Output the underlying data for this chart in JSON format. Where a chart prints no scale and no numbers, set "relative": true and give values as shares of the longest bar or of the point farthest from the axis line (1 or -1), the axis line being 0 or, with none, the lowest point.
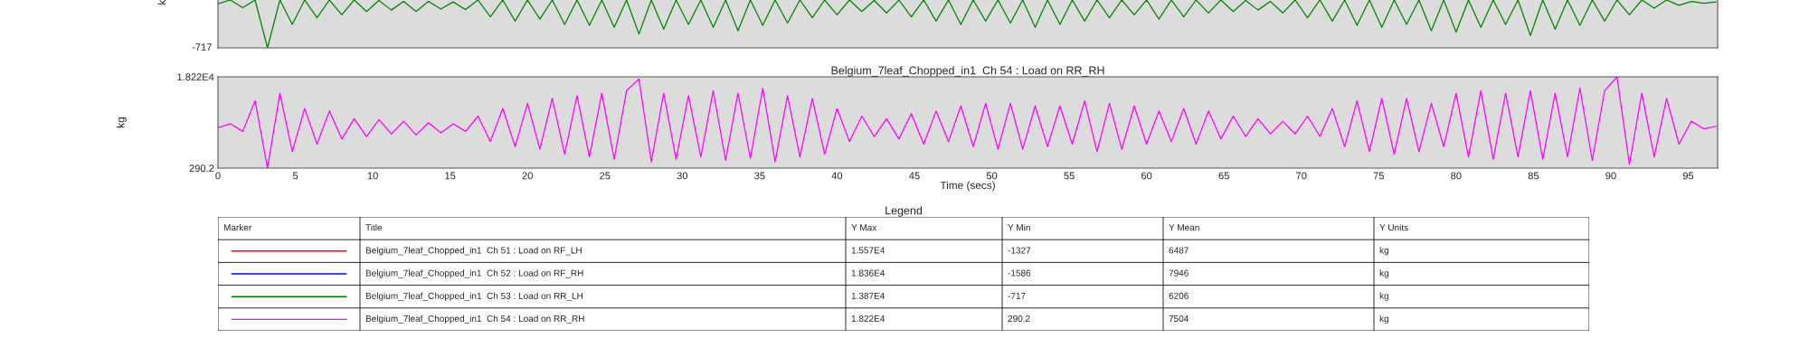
{
  "chart_data": [
    {
      "type": "line",
      "ylabel": "k",
      "relative": true,
      "annotations": [
        "-717"
      ],
      "xlim": [
        0,
        96.9
      ],
      "xticks": [
        0,
        5,
        10,
        15,
        20,
        25,
        30,
        35,
        40,
        45,
        50,
        55,
        60,
        65,
        70,
        75,
        80,
        85,
        90,
        95
      ],
      "tick_labels": false,
      "x": [
        0,
        0.8,
        1.6,
        2.4,
        3.2,
        4,
        4.8,
        5.6,
        6.4,
        7.2,
        8,
        8.8,
        9.6,
        10.4,
        11.2,
        12,
        12.8,
        13.6,
        14.4,
        15.2,
        16,
        16.8,
        17.6,
        18.4,
        19.2,
        20,
        20.8,
        21.6,
        22.4,
        23.2,
        24,
        24.8,
        25.6,
        26.4,
        27.2,
        28,
        28.8,
        29.6,
        30.4,
        31.2,
        32,
        32.8,
        33.6,
        34.4,
        35.2,
        36,
        36.8,
        37.6,
        38.4,
        39.2,
        40,
        40.8,
        41.6,
        42.4,
        43.2,
        44,
        44.8,
        45.6,
        46.4,
        47.2,
        48,
        48.8,
        49.6,
        50.4,
        51.2,
        52,
        52.8,
        53.6,
        54.4,
        55.2,
        56,
        56.8,
        57.6,
        58.4,
        59.2,
        60,
        60.8,
        61.6,
        62.4,
        63.2,
        64,
        64.8,
        65.6,
        66.4,
        67.2,
        68,
        68.8,
        69.6,
        70.4,
        71.2,
        72,
        72.8,
        73.6,
        74.4,
        75.2,
        76,
        76.8,
        77.6,
        78.4,
        79.2,
        80,
        80.8,
        81.6,
        82.4,
        83.2,
        84,
        84.8,
        85.6,
        86.4,
        87.2,
        88,
        88.8,
        89.6,
        90.4,
        91.2,
        92,
        92.8,
        93.6,
        94.4,
        95.2,
        96,
        96.8
      ],
      "series": [
        {
          "color": "#008000",
          "values": [
            0.92,
            1,
            0.84,
            1,
            0,
            1,
            0.49,
            1,
            0.63,
            1,
            0.69,
            1,
            0.76,
            0.99,
            0.79,
            0.97,
            0.76,
            0.97,
            0.81,
            0.96,
            0.8,
            1,
            0.65,
            1,
            0.56,
            1,
            0.6,
            1,
            0.49,
            1,
            0.47,
            1,
            0.43,
            1,
            0.29,
            1,
            0.39,
            1,
            0.49,
            1,
            0.43,
            1,
            0.36,
            1,
            0.47,
            1,
            0.52,
            1,
            0.63,
            1,
            0.69,
            1,
            0.76,
            0.99,
            0.73,
            1,
            0.65,
            1,
            0.56,
            1,
            0.49,
            1,
            0.56,
            1,
            0.52,
            1,
            0.43,
            1,
            0.49,
            1,
            0.56,
            1,
            0.63,
            1,
            0.69,
            1,
            0.6,
            1,
            0.65,
            1,
            0.73,
            1,
            0.76,
            0.99,
            0.79,
            0.97,
            0.73,
            1,
            0.63,
            1,
            0.56,
            1,
            0.47,
            1,
            0.43,
            1,
            0.49,
            1,
            0.36,
            1,
            0.33,
            1,
            0.43,
            1,
            0.49,
            1,
            0.26,
            1,
            0.39,
            1,
            0.47,
            1,
            0.56,
            1,
            0.69,
            1,
            0.83,
            1,
            0.89,
            0.97,
            0.93,
            0.96
          ]
        }
      ]
    },
    {
      "type": "line",
      "title": "Belgium_7leaf_Chopped_in1  Ch 54 : Load on RR_RH",
      "xlabel": "Time (secs)",
      "ylabel": "kg",
      "xlim": [
        0,
        96.9
      ],
      "xticks": [
        0,
        5,
        10,
        15,
        20,
        25,
        30,
        35,
        40,
        45,
        50,
        55,
        60,
        65,
        70,
        75,
        80,
        85,
        90,
        95
      ],
      "ylim": [
        290.2,
        18220
      ],
      "yticks": [
        290.2,
        {
          "value": 18220,
          "label": "1.822E4"
        }
      ],
      "x": [
        0,
        0.8,
        1.6,
        2.4,
        3.2,
        4,
        4.8,
        5.6,
        6.4,
        7.2,
        8,
        8.8,
        9.6,
        10.4,
        11.2,
        12,
        12.8,
        13.6,
        14.4,
        15.2,
        16,
        16.8,
        17.6,
        18.4,
        19.2,
        20,
        20.8,
        21.6,
        22.4,
        23.2,
        24,
        24.8,
        25.6,
        26.4,
        27.2,
        28,
        28.8,
        29.6,
        30.4,
        31.2,
        32,
        32.8,
        33.6,
        34.4,
        35.2,
        36,
        36.8,
        37.6,
        38.4,
        39.2,
        40,
        40.8,
        41.6,
        42.4,
        43.2,
        44,
        44.8,
        45.6,
        46.4,
        47.2,
        48,
        48.8,
        49.6,
        50.4,
        51.2,
        52,
        52.8,
        53.6,
        54.4,
        55.2,
        56,
        56.8,
        57.6,
        58.4,
        59.2,
        60,
        60.8,
        61.6,
        62.4,
        63.2,
        64,
        64.8,
        65.6,
        66.4,
        67.2,
        68,
        68.8,
        69.6,
        70.4,
        71.2,
        72,
        72.8,
        73.6,
        74.4,
        75.2,
        76,
        76.8,
        77.6,
        78.4,
        79.2,
        80,
        80.8,
        81.6,
        82.4,
        83.2,
        84,
        84.8,
        85.6,
        86.4,
        87.2,
        88,
        88.8,
        89.6,
        90.4,
        91.2,
        92,
        92.8,
        93.6,
        94.4,
        95.2,
        96,
        96.8
      ],
      "series": [
        {
          "color": "#ff00ff",
          "values": [
            8200,
            9000,
            7500,
            13500,
            290.2,
            15000,
            3500,
            12000,
            5000,
            11500,
            6000,
            10000,
            6500,
            9800,
            7000,
            9500,
            6800,
            9200,
            7200,
            9000,
            7500,
            10500,
            5500,
            12000,
            4500,
            13000,
            4000,
            14000,
            3000,
            14500,
            2500,
            15000,
            2000,
            15500,
            17800,
            1500,
            15000,
            2000,
            14500,
            2500,
            15500,
            1800,
            15000,
            2200,
            16000,
            1500,
            14500,
            2500,
            14000,
            3000,
            12000,
            5500,
            10500,
            6500,
            10000,
            6000,
            11000,
            5000,
            11500,
            5500,
            12500,
            4500,
            13000,
            4000,
            13000,
            4000,
            12500,
            4500,
            12500,
            5000,
            13500,
            3500,
            13000,
            4000,
            12500,
            5000,
            11500,
            5500,
            12000,
            5000,
            11500,
            6000,
            10500,
            6500,
            10000,
            7000,
            9500,
            7000,
            10500,
            6500,
            12000,
            4500,
            13500,
            3500,
            14000,
            3000,
            14000,
            3500,
            13000,
            4500,
            15000,
            2500,
            15500,
            2000,
            15000,
            2500,
            15500,
            2000,
            15000,
            2500,
            16000,
            1800,
            15500,
            18220,
            1000,
            15000,
            2500,
            14000,
            5000,
            9500,
            8000,
            8500
          ]
        }
      ]
    },
    {
      "type": "other",
      "title": "Legend",
      "colors": [
        "#ff0000",
        "#0000ff",
        "#008000",
        "#ff00ff"
      ],
      "annotations": [
        "Marker",
        "Title",
        "Y Max",
        "Y Min",
        "Y Mean",
        "Y Units",
        "Belgium_7leaf_Chopped_in1  Ch 51 : Load on RF_LH",
        "1.557E4",
        "-1327",
        "6487",
        "kg",
        "Belgium_7leaf_Chopped_in1  Ch 52 : Load on RF_RH",
        "1.836E4",
        "-1586",
        "7946",
        "kg",
        "Belgium_7leaf_Chopped_in1  Ch 53 : Load on RR_LH",
        "1.387E4",
        "-717",
        "6206",
        "kg",
        "Belgium_7leaf_Chopped_in1  Ch 54 : Load on RR_RH",
        "1.822E4",
        "290.2",
        "7504",
        "kg"
      ]
    }
  ]
}
